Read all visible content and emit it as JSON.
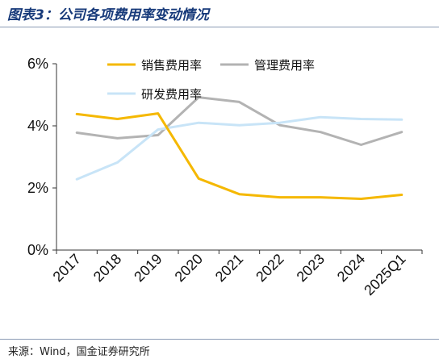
{
  "title": "图表3：公司各项费用率变动情况",
  "source": "来源：Wind，国金证券研究所",
  "chart_data": {
    "type": "line",
    "categories": [
      "2017",
      "2018",
      "2019",
      "2020",
      "2021",
      "2022",
      "2023",
      "2024",
      "2025Q1"
    ],
    "y_ticks": [
      "0%",
      "2%",
      "4%",
      "6%"
    ],
    "ylim": [
      0,
      6
    ],
    "grid": false,
    "legend_position": "top",
    "series": [
      {
        "name": "销售费用率",
        "color": "#f5b800",
        "values": [
          4.38,
          4.22,
          4.4,
          2.3,
          1.8,
          1.7,
          1.7,
          1.65,
          1.78
        ]
      },
      {
        "name": "管理费用率",
        "color": "#b3b3b3",
        "values": [
          3.78,
          3.6,
          3.7,
          4.92,
          4.77,
          4.02,
          3.8,
          3.39,
          3.8
        ]
      },
      {
        "name": "研发费用率",
        "color": "#c8e4f7",
        "values": [
          2.28,
          2.82,
          3.88,
          4.1,
          4.02,
          4.1,
          4.28,
          4.22,
          4.2
        ]
      }
    ]
  }
}
